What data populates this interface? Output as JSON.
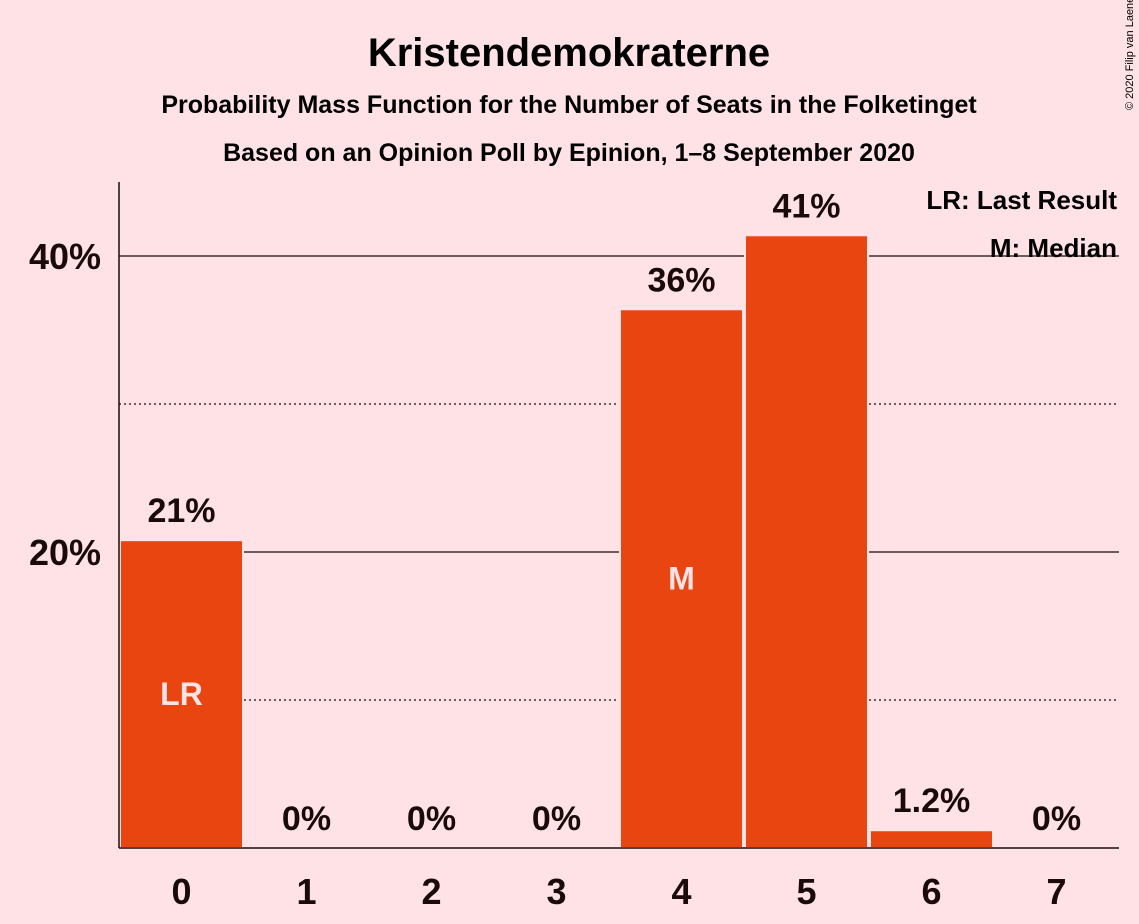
{
  "copyright": "© 2020 Filip van Laenen",
  "colors": {
    "background": "#FEE2E6",
    "bar": "#E84511",
    "text": "#1a0a0a",
    "bar_mark_text": "#FEE2E6"
  },
  "chart_data": {
    "type": "bar",
    "title": "Kristendemokraterne",
    "subtitle": "Probability Mass Function for the Number of Seats in the Folketinget",
    "subtitle2": "Based on an Opinion Poll by Epinion, 1–8 September 2020",
    "xlabel": "",
    "ylabel": "",
    "categories": [
      "0",
      "1",
      "2",
      "3",
      "4",
      "5",
      "6",
      "7"
    ],
    "values": [
      20.8,
      0,
      0,
      0,
      36.4,
      41.4,
      1.2,
      0
    ],
    "data_labels": [
      "21%",
      "0%",
      "0%",
      "0%",
      "36%",
      "41%",
      "1.2%",
      "0%"
    ],
    "bar_marks": [
      "LR",
      "",
      "",
      "",
      "M",
      "",
      "",
      ""
    ],
    "ylim": [
      0,
      45
    ],
    "yticks": [
      {
        "value": 20,
        "label": "20%"
      },
      {
        "value": 40,
        "label": "40%"
      }
    ],
    "minor_gridlines": [
      10,
      30
    ],
    "grid": true,
    "legend_position": "top-right",
    "legend": [
      "LR: Last Result",
      "M: Median"
    ]
  }
}
